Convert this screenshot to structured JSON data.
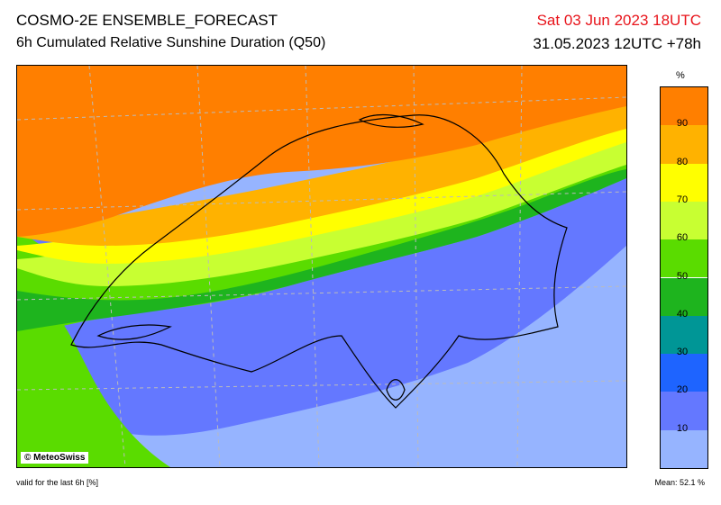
{
  "header": {
    "model": "COSMO-2E ENSEMBLE_FORECAST",
    "product": "6h Cumulated Relative Sunshine Duration (Q50)",
    "valid_time": "Sat 03 Jun 2023 18UTC",
    "run_time": "31.05.2023 12UTC +78h"
  },
  "map": {
    "credit": "© MeteoSwiss"
  },
  "legend": {
    "unit": "%",
    "ticks": [
      "90",
      "80",
      "70",
      "60",
      "50",
      "40",
      "30",
      "20",
      "10"
    ],
    "colors": [
      "#ff7f00",
      "#ffb200",
      "#ffff00",
      "#c8ff32",
      "#5adc00",
      "#1eb41e",
      "#009696",
      "#1e64ff",
      "#6478ff",
      "#96b4ff"
    ]
  },
  "footer": {
    "validity": "valid for the last 6h [%]",
    "mean": "Mean:  52.1 %"
  }
}
